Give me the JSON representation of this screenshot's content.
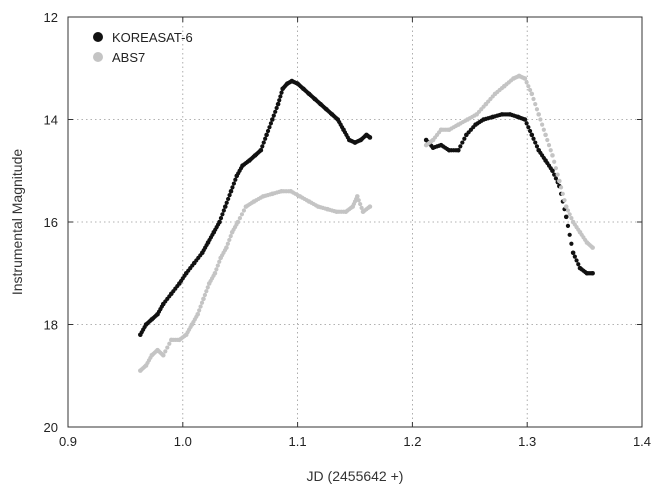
{
  "chart_data": {
    "type": "scatter",
    "xlabel": "JD (2455642 +)",
    "ylabel": "Instrumental Magnitude",
    "xlim": [
      0.9,
      1.4
    ],
    "ylim": [
      12,
      20
    ],
    "y_inverted": true,
    "grid": true,
    "grid_style": "dotted",
    "legend_position": "top-left",
    "x_ticks": [
      "0.9",
      "1.0",
      "1.1",
      "1.2",
      "1.3",
      "1.4"
    ],
    "y_ticks": [
      "12",
      "14",
      "16",
      "18",
      "20"
    ],
    "series": [
      {
        "name": "KOREASAT-6",
        "color": "#111111",
        "x": [
          0.963,
          0.968,
          0.973,
          0.978,
          0.983,
          0.99,
          0.997,
          1.003,
          1.01,
          1.017,
          1.022,
          1.027,
          1.032,
          1.037,
          1.042,
          1.047,
          1.052,
          1.058,
          1.063,
          1.068,
          1.073,
          1.078,
          1.083,
          1.087,
          1.091,
          1.095,
          1.1,
          1.105,
          1.11,
          1.115,
          1.12,
          1.125,
          1.13,
          1.135,
          1.14,
          1.145,
          1.15,
          1.155,
          1.16,
          1.163,
          1.212,
          1.218,
          1.225,
          1.232,
          1.24,
          1.247,
          1.255,
          1.262,
          1.27,
          1.278,
          1.285,
          1.292,
          1.298,
          1.304,
          1.31,
          1.316,
          1.322,
          1.328,
          1.334,
          1.34,
          1.346,
          1.352,
          1.357
        ],
        "y": [
          18.2,
          18.0,
          17.9,
          17.8,
          17.6,
          17.4,
          17.2,
          17.0,
          16.8,
          16.6,
          16.4,
          16.2,
          16.0,
          15.7,
          15.4,
          15.1,
          14.9,
          14.8,
          14.7,
          14.6,
          14.3,
          14.0,
          13.7,
          13.4,
          13.3,
          13.25,
          13.3,
          13.4,
          13.5,
          13.6,
          13.7,
          13.8,
          13.9,
          14.0,
          14.2,
          14.4,
          14.45,
          14.4,
          14.3,
          14.35,
          14.4,
          14.55,
          14.5,
          14.6,
          14.6,
          14.3,
          14.1,
          14.0,
          13.95,
          13.9,
          13.9,
          13.95,
          14.0,
          14.3,
          14.6,
          14.8,
          15.0,
          15.3,
          15.9,
          16.6,
          16.9,
          17.0,
          17.0
        ]
      },
      {
        "name": "ABS7",
        "color": "#c4c4c4",
        "x": [
          0.963,
          0.968,
          0.973,
          0.978,
          0.983,
          0.99,
          0.997,
          1.003,
          1.008,
          1.013,
          1.018,
          1.023,
          1.028,
          1.033,
          1.038,
          1.043,
          1.048,
          1.055,
          1.062,
          1.07,
          1.078,
          1.086,
          1.094,
          1.102,
          1.11,
          1.118,
          1.126,
          1.134,
          1.142,
          1.148,
          1.152,
          1.157,
          1.163,
          1.212,
          1.218,
          1.225,
          1.232,
          1.24,
          1.248,
          1.256,
          1.264,
          1.272,
          1.28,
          1.288,
          1.293,
          1.298,
          1.304,
          1.31,
          1.316,
          1.322,
          1.328,
          1.334,
          1.34,
          1.346,
          1.352,
          1.357
        ],
        "y": [
          18.9,
          18.8,
          18.6,
          18.5,
          18.6,
          18.3,
          18.3,
          18.2,
          18.0,
          17.8,
          17.5,
          17.2,
          17.0,
          16.7,
          16.5,
          16.2,
          16.0,
          15.7,
          15.6,
          15.5,
          15.45,
          15.4,
          15.4,
          15.5,
          15.6,
          15.7,
          15.75,
          15.8,
          15.8,
          15.7,
          15.5,
          15.8,
          15.7,
          14.5,
          14.4,
          14.2,
          14.2,
          14.1,
          14.0,
          13.9,
          13.7,
          13.5,
          13.35,
          13.2,
          13.15,
          13.2,
          13.5,
          13.9,
          14.3,
          14.7,
          15.2,
          15.7,
          16.0,
          16.2,
          16.4,
          16.5
        ]
      }
    ]
  }
}
